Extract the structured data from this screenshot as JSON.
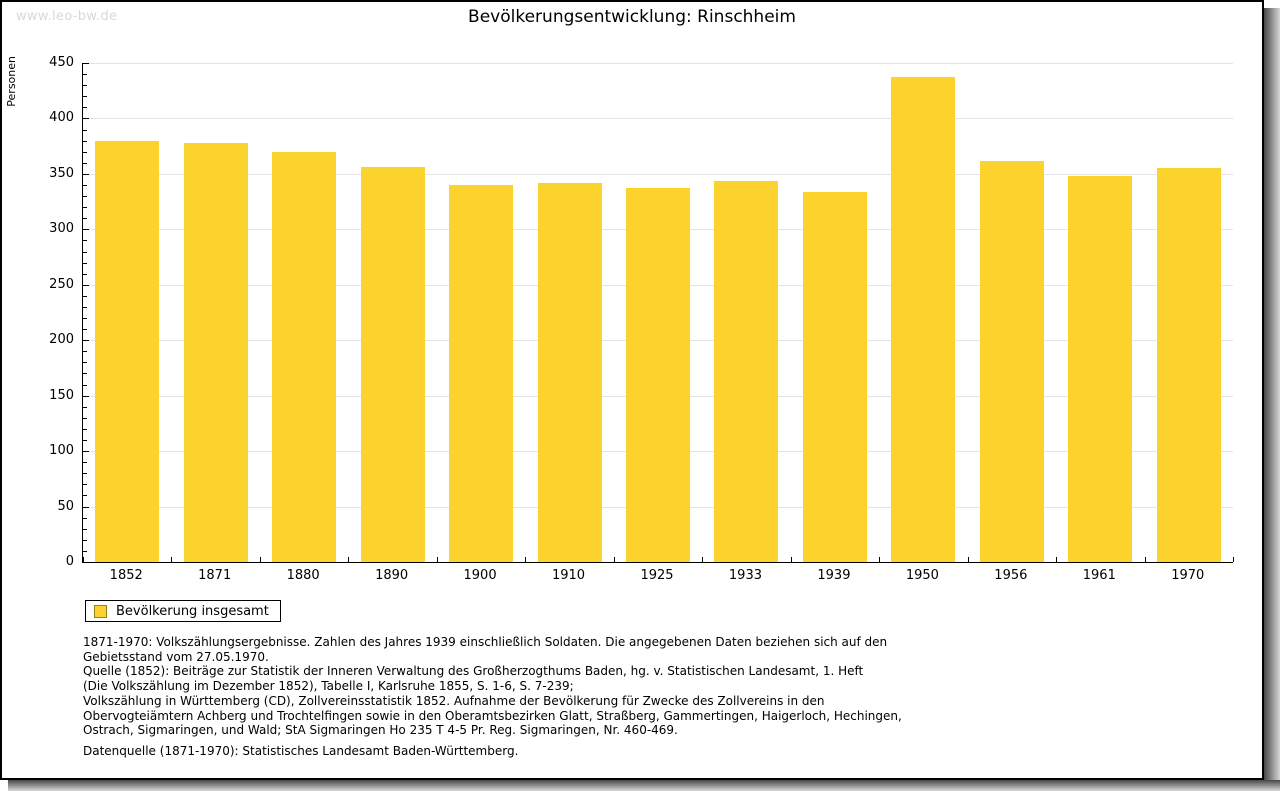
{
  "watermark": "www.leo-bw.de",
  "chart_data": {
    "type": "bar",
    "title": "Bevölkerungsentwicklung: Rinschheim",
    "xlabel": "",
    "ylabel": "Personen",
    "categories": [
      "1852",
      "1871",
      "1880",
      "1890",
      "1900",
      "1910",
      "1925",
      "1933",
      "1939",
      "1950",
      "1956",
      "1961",
      "1970"
    ],
    "values": [
      380,
      378,
      370,
      356,
      340,
      342,
      337,
      344,
      334,
      437,
      362,
      348,
      355
    ],
    "ylim": [
      0,
      450
    ],
    "y_ticks": [
      0,
      50,
      100,
      150,
      200,
      250,
      300,
      350,
      400,
      450
    ],
    "y_minor_step": 10,
    "grid": "horizontal-major-only",
    "legend_position": "bottom-left",
    "bar_color": "#FCD32D",
    "gridline_color": "#e4e4e4",
    "axis_color": "#000000"
  },
  "legend": {
    "label": "Bevölkerung insgesamt",
    "swatch_color": "#FCD32D",
    "swatch_border": "#9a8419"
  },
  "footer": {
    "lines": [
      "1871-1970: Volkszählungsergebnisse. Zahlen des Jahres 1939 einschließlich Soldaten. Die angegebenen Daten beziehen sich auf den",
      "Gebietsstand vom 27.05.1970.",
      "Quelle (1852): Beiträge zur Statistik der Inneren Verwaltung des Großherzogthums Baden, hg. v. Statistischen Landesamt, 1. Heft",
      "(Die Volkszählung im Dezember 1852), Tabelle I, Karlsruhe 1855, S. 1-6, S. 7-239;",
      "Volkszählung in Württemberg (CD), Zollvereinsstatistik 1852. Aufnahme der Bevölkerung für Zwecke des Zollvereins in den",
      "Obervogteiämtern Achberg und Trochtelfingen sowie in den Oberamtsbezirken Glatt, Straßberg, Gammertingen, Haigerloch, Hechingen,",
      "Ostrach, Sigmaringen, und Wald; StA Sigmaringen Ho 235 T 4-5 Pr. Reg. Sigmaringen, Nr. 460-469."
    ],
    "datasource": "Datenquelle (1871-1970): Statistisches Landesamt Baden-Württemberg."
  }
}
